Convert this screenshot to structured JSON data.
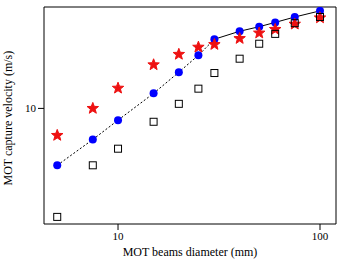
{
  "chart_data": {
    "type": "scatter",
    "x_label": "MOT beams diameter (mm)",
    "y_label": "MOT capture velocity (m/s)",
    "log": true,
    "grid": false,
    "x": [
      5,
      7.5,
      10,
      15,
      20,
      25,
      30,
      40,
      50,
      60,
      75,
      100
    ],
    "xlim": [
      4.3,
      120
    ],
    "xticks": [
      10,
      100
    ],
    "ylim": [
      1.8,
      45
    ],
    "yticks": [
      10
    ],
    "series": [
      {
        "type": "scatter",
        "marker": "circle",
        "color": "#0000ff",
        "values": [
          4.3,
          6.3,
          8.4,
          12.5,
          17.1,
          22,
          27.9,
          31.4,
          33.6,
          35.8,
          38.8,
          42.5
        ]
      },
      {
        "type": "scatter",
        "marker": "star",
        "color": "#ee1111",
        "values": [
          6.7,
          10,
          13.5,
          19.1,
          22.3,
          24.8,
          25.8,
          28.2,
          30.6,
          32.3,
          34.9,
          38.3
        ]
      },
      {
        "type": "scatter",
        "marker": "square_open",
        "color": "#000000",
        "values": [
          2.0,
          4.3,
          5.5,
          8.2,
          10.7,
          13.4,
          16.9,
          20.9,
          26.1,
          30.2,
          35.4,
          38.8
        ]
      },
      {
        "type": "line",
        "line_style": "dotted",
        "color": "#000000",
        "values": [
          4.3,
          6.3,
          8.4,
          12.5,
          17.1,
          22,
          27.9,
          null,
          null,
          null,
          null,
          null
        ]
      },
      {
        "type": "line",
        "line_style": "solid",
        "color": "#000000",
        "values": [
          null,
          null,
          null,
          null,
          null,
          null,
          27.9,
          31.4,
          33.6,
          35.8,
          38.8,
          42.5
        ]
      }
    ]
  }
}
